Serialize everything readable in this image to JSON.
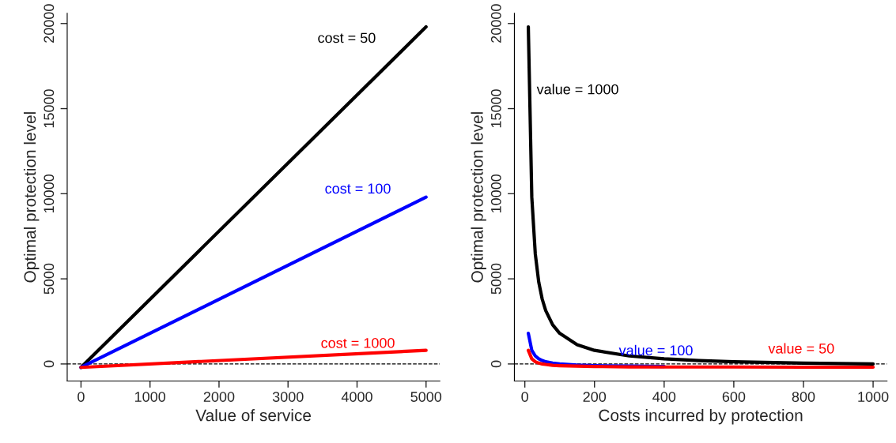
{
  "chart_data": [
    {
      "type": "line",
      "xlabel": "Value of service",
      "ylabel": "Optimal protection level",
      "x": [
        0,
        5000
      ],
      "series": [
        {
          "name": "cost = 50",
          "color": "#000000",
          "values": [
            -200,
            19800
          ]
        },
        {
          "name": "cost = 100",
          "color": "#0000ff",
          "values": [
            -200,
            9800
          ]
        },
        {
          "name": "cost = 1000",
          "color": "#ff0000",
          "values": [
            -200,
            800
          ]
        }
      ],
      "ref_lines": [
        {
          "axis": "y",
          "value": 0,
          "line_style": "dashed",
          "color": "#000000"
        }
      ],
      "xlim": [
        -200,
        5200
      ],
      "ylim": [
        -1000,
        20600
      ],
      "xticks": [
        0,
        1000,
        2000,
        3000,
        4000,
        5000
      ],
      "yticks": [
        0,
        5000,
        10000,
        15000,
        20000
      ],
      "grid": false,
      "legend": false,
      "marker": "none",
      "line_style": "solid"
    },
    {
      "type": "line",
      "xlabel": "Costs incurred by protection",
      "ylabel": "Optimal protection level",
      "x": [
        10,
        20,
        30,
        40,
        50,
        60,
        80,
        100,
        150,
        200,
        300,
        400,
        500,
        600,
        800,
        1000
      ],
      "series": [
        {
          "name": "value = 1000",
          "color": "#000000",
          "values": [
            19800,
            9800,
            6470,
            4800,
            3800,
            3130,
            2300,
            1800,
            1130,
            800,
            470,
            300,
            200,
            130,
            50,
            0
          ]
        },
        {
          "name": "value = 100",
          "color": "#0000ff",
          "values": [
            1800,
            800,
            470,
            300,
            200,
            130,
            50,
            0,
            -70,
            -100,
            -130,
            -150,
            null,
            null,
            null,
            null
          ]
        },
        {
          "name": "value = 50",
          "color": "#ff0000",
          "values": [
            800,
            300,
            130,
            50,
            0,
            -30,
            -80,
            -100,
            -130,
            -150,
            -170,
            -180,
            -180,
            -180,
            -190,
            -190
          ]
        }
      ],
      "ref_lines": [
        {
          "axis": "y",
          "value": 0,
          "line_style": "dashed",
          "color": "#000000"
        }
      ],
      "xlim": [
        -30,
        1040
      ],
      "ylim": [
        -1000,
        20600
      ],
      "xticks": [
        0,
        200,
        400,
        600,
        800,
        1000
      ],
      "yticks": [
        0,
        5000,
        10000,
        15000,
        20000
      ],
      "grid": false,
      "legend": false,
      "marker": "none",
      "line_style": "solid"
    }
  ]
}
